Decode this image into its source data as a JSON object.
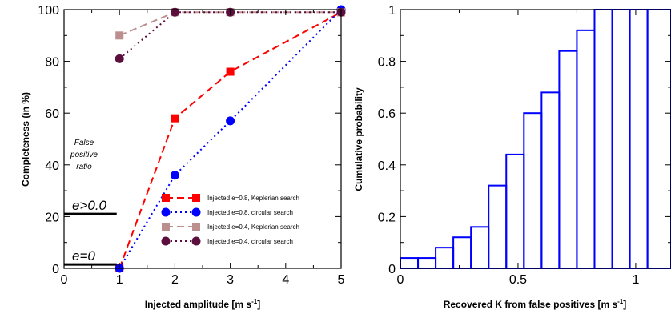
{
  "chart_data": [
    {
      "type": "line",
      "xlabel": "Injected amplitude [m s",
      "xlabel_sup": "-1",
      "xlabel_end": "]",
      "ylabel": "Completeness (in %)",
      "xlim": [
        0,
        5
      ],
      "ylim": [
        0,
        100
      ],
      "xticks": [
        "0",
        "1",
        "2",
        "3",
        "4",
        "5"
      ],
      "yticks": [
        "0",
        "20",
        "40",
        "60",
        "80",
        "100"
      ],
      "grid": false,
      "legend_position": "bottom-right",
      "series": [
        {
          "name": "Injected e=0.8, Keplerian search",
          "color": "#ff0000",
          "marker": "square",
          "dash": "dashed",
          "x": [
            1,
            2,
            3,
            5
          ],
          "y": [
            0,
            58,
            76,
            99
          ]
        },
        {
          "name": "Injected e=0.8, circular search",
          "color": "#0000ff",
          "marker": "circle",
          "dash": "dotted",
          "x": [
            1,
            2,
            3,
            5
          ],
          "y": [
            0,
            36,
            57,
            100
          ]
        },
        {
          "name": "Injected e=0.4, Keplerian search",
          "color": "#bc8f8f",
          "marker": "square",
          "dash": "dashed",
          "x": [
            1,
            2,
            3,
            5
          ],
          "y": [
            90,
            99,
            99,
            99
          ]
        },
        {
          "name": "Injected e=0.4, circular search",
          "color": "#5c0f3d",
          "marker": "circle",
          "dash": "dotted",
          "x": [
            1,
            2,
            3,
            5
          ],
          "y": [
            81,
            99,
            99,
            99
          ]
        }
      ],
      "annotations": {
        "false_positive_lines": [
          {
            "label": "e>0.0",
            "y": 21,
            "x_range": [
              0,
              0.95
            ]
          },
          {
            "label": "e=0",
            "y": 1.5,
            "x_range": [
              0,
              0.95
            ]
          }
        ],
        "false_positive_text": [
          "False",
          "positive",
          "ratio"
        ]
      }
    },
    {
      "type": "histogram",
      "xlabel": "Recovered K from false positives [m s",
      "xlabel_sup": "-1",
      "xlabel_end": "]",
      "ylabel": "Cumulative probability",
      "xlim": [
        0,
        1.15
      ],
      "ylim": [
        0,
        1
      ],
      "xticks": [
        "0",
        "0.5",
        "1"
      ],
      "yticks": [
        "0",
        "0.2",
        "0.4",
        "0.6",
        "0.8",
        "1"
      ],
      "grid": false,
      "color": "#0000ff",
      "bins": [
        0,
        0.075,
        0.15,
        0.225,
        0.3,
        0.375,
        0.45,
        0.525,
        0.6,
        0.675,
        0.75,
        0.825,
        0.9,
        0.975,
        1.05,
        1.15
      ],
      "values": [
        0.04,
        0.04,
        0.08,
        0.12,
        0.16,
        0.32,
        0.44,
        0.6,
        0.68,
        0.84,
        0.92,
        1.0,
        1.0,
        1.0,
        1.0
      ]
    }
  ]
}
